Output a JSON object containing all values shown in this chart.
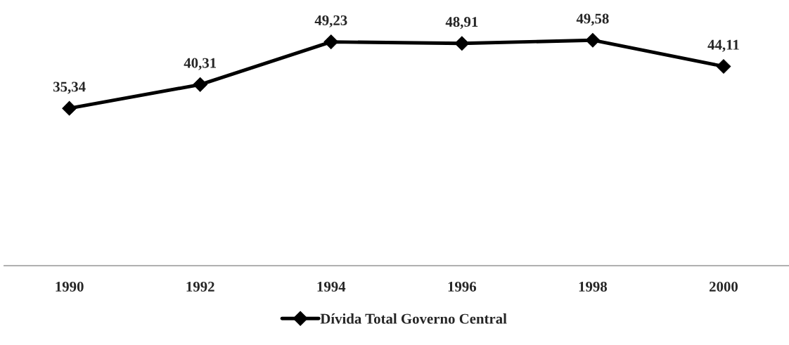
{
  "chart_data": {
    "type": "line",
    "categories": [
      "1990",
      "1992",
      "1994",
      "1996",
      "1998",
      "2000"
    ],
    "series": [
      {
        "name": "Dívida Total Governo Central",
        "color": "#000000",
        "values": [
          35.34,
          40.31,
          49.23,
          48.91,
          49.58,
          44.11
        ],
        "value_labels": [
          "35,34",
          "40,31",
          "49,23",
          "48,91",
          "49,58",
          "44,11"
        ]
      }
    ],
    "tick_labels": "x",
    "marker": "diamond",
    "line_style": "solid",
    "grid": false,
    "legend": "bottom"
  }
}
